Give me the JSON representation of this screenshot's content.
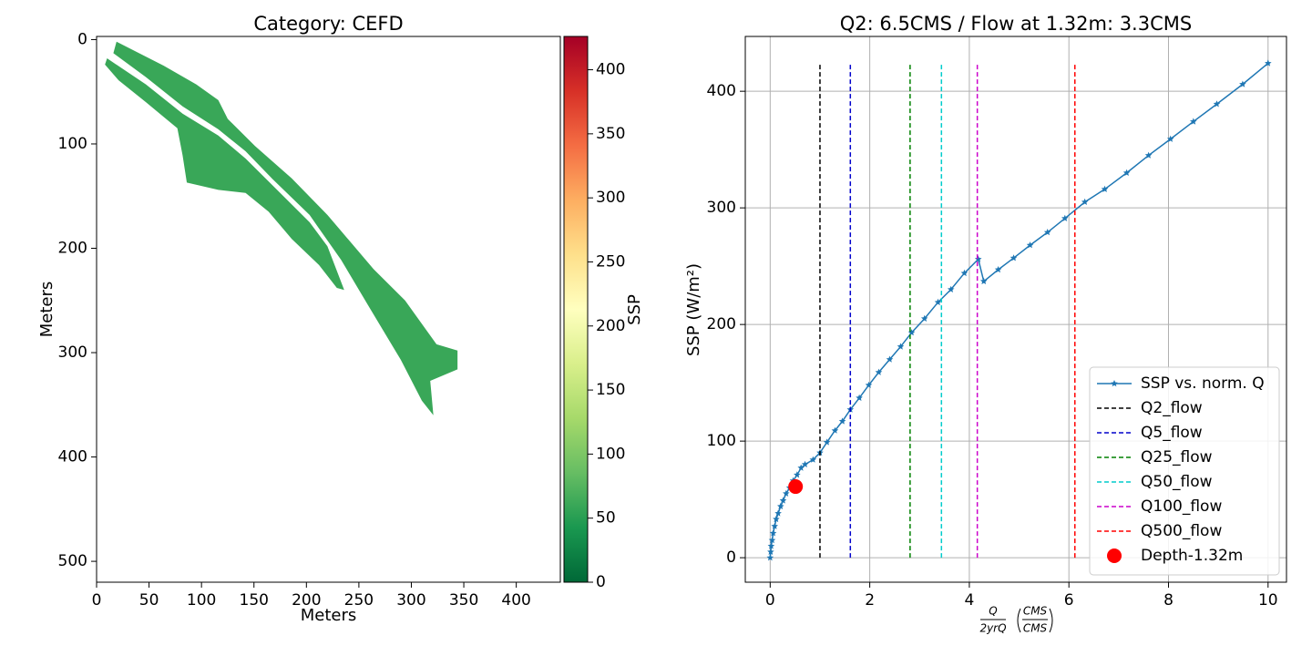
{
  "chart_data": [
    {
      "type": "map",
      "title": "Category: CEFD",
      "xlabel": "Meters",
      "ylabel": "Meters",
      "xlim": [
        0,
        442
      ],
      "ylim": [
        520,
        -3
      ],
      "xticks": [
        0,
        50,
        100,
        150,
        200,
        250,
        300,
        350,
        400
      ],
      "yticks": [
        0,
        100,
        200,
        300,
        400,
        500
      ],
      "regions": [
        {
          "value": 60,
          "points": [
            [
              19,
              2
            ],
            [
              64,
              25
            ],
            [
              95,
              43
            ],
            [
              116,
              58
            ],
            [
              125,
              76
            ],
            [
              151,
              102
            ],
            [
              186,
              133
            ],
            [
              220,
              168
            ],
            [
              264,
              220
            ],
            [
              294,
              250
            ],
            [
              324,
              292
            ],
            [
              344,
              298
            ],
            [
              344,
              316
            ],
            [
              318,
              327
            ],
            [
              321,
              360
            ],
            [
              310,
              346
            ],
            [
              290,
              307
            ],
            [
              259,
              255
            ],
            [
              233,
              211
            ],
            [
              212,
              181
            ],
            [
              203,
              168
            ],
            [
              168,
              134
            ],
            [
              142,
              107
            ],
            [
              116,
              86
            ],
            [
              82,
              64
            ],
            [
              47,
              36
            ],
            [
              16,
              13
            ]
          ]
        },
        {
          "value": 60,
          "points": [
            [
              10,
              18
            ],
            [
              47,
              43
            ],
            [
              82,
              71
            ],
            [
              116,
              92
            ],
            [
              142,
              114
            ],
            [
              168,
              140
            ],
            [
              203,
              175
            ],
            [
              220,
              198
            ],
            [
              236,
              240
            ],
            [
              229,
              238
            ],
            [
              212,
              216
            ],
            [
              186,
              191
            ],
            [
              164,
              165
            ],
            [
              142,
              147
            ],
            [
              116,
              144
            ],
            [
              86,
              137
            ],
            [
              82,
              111
            ],
            [
              77,
              85
            ],
            [
              47,
              60
            ],
            [
              21,
              39
            ],
            [
              8,
              24
            ]
          ]
        }
      ],
      "colorbar": {
        "label": "SSP",
        "lim": [
          0,
          426
        ],
        "ticks": [
          0,
          50,
          100,
          150,
          200,
          250,
          300,
          350,
          400
        ],
        "colormap": [
          "#006837",
          "#1a9850",
          "#66bd63",
          "#a6d96a",
          "#d9ef8b",
          "#ffffbf",
          "#fee08b",
          "#fdae61",
          "#f46d43",
          "#d73027",
          "#a50026"
        ]
      }
    },
    {
      "type": "line",
      "title": "Q2: 6.5CMS / Flow at 1.32m: 3.3CMS",
      "ylabel": "SSP (W/m²)",
      "xlabel": {
        "numerator": "Q",
        "denominator": "2yrQ",
        "unit_numerator": "CMS",
        "unit_denominator": "CMS"
      },
      "xlim": [
        -0.5,
        10.37
      ],
      "ylim": [
        -21,
        447
      ],
      "xticks": [
        0,
        2,
        4,
        6,
        8,
        10
      ],
      "yticks": [
        0,
        100,
        200,
        300,
        400
      ],
      "grid": true,
      "legend": "lower right",
      "series": [
        {
          "name": "SSP vs. norm. Q",
          "color": "#1f77b4",
          "style": "solid",
          "marker": "star",
          "x": [
            0,
            0.01,
            0.02,
            0.04,
            0.06,
            0.09,
            0.12,
            0.16,
            0.21,
            0.26,
            0.32,
            0.39,
            0.46,
            0.54,
            0.62,
            0.7,
            0.86,
            1.0,
            1.14,
            1.3,
            1.45,
            1.61,
            1.79,
            1.98,
            2.18,
            2.4,
            2.62,
            2.84,
            3.1,
            3.37,
            3.63,
            3.9,
            4.18,
            4.29,
            4.58,
            4.89,
            5.22,
            5.57,
            5.92,
            6.32,
            6.72,
            7.16,
            7.6,
            8.04,
            8.5,
            8.97,
            9.49,
            10
          ],
          "values": [
            0,
            5,
            10,
            15,
            21,
            27,
            33,
            38,
            44,
            49,
            55,
            60,
            66,
            71,
            77,
            80,
            84,
            90,
            99,
            109,
            117,
            127,
            137,
            148,
            159,
            170,
            181,
            193,
            205,
            219,
            230,
            244,
            256,
            237,
            247,
            257,
            268,
            279,
            291,
            305,
            316,
            330,
            345,
            359,
            374,
            389,
            406,
            424
          ]
        },
        {
          "name": "Q2_flow",
          "color": "#000000",
          "style": "dashed",
          "marker": "none",
          "x": [
            1.0,
            1.0
          ],
          "values": [
            0,
            424
          ]
        },
        {
          "name": "Q5_flow",
          "color": "#0000cc",
          "style": "dashed",
          "marker": "none",
          "x": [
            1.61,
            1.61
          ],
          "values": [
            0,
            424
          ]
        },
        {
          "name": "Q25_flow",
          "color": "#008000",
          "style": "dashed",
          "marker": "none",
          "x": [
            2.81,
            2.81
          ],
          "values": [
            0,
            424
          ]
        },
        {
          "name": "Q50_flow",
          "color": "#00cccc",
          "style": "dashed",
          "marker": "none",
          "x": [
            3.44,
            3.44
          ],
          "values": [
            0,
            424
          ]
        },
        {
          "name": "Q100_flow",
          "color": "#cc00cc",
          "style": "dashed",
          "marker": "none",
          "x": [
            4.16,
            4.16
          ],
          "values": [
            0,
            424
          ]
        },
        {
          "name": "Q500_flow",
          "color": "#ff0000",
          "style": "dashed",
          "marker": "none",
          "x": [
            6.12,
            6.12
          ],
          "values": [
            0,
            424
          ]
        },
        {
          "name": "Depth-1.32m",
          "color": "#ff0000",
          "style": "none",
          "marker": "circle",
          "x": [
            0.51
          ],
          "values": [
            61
          ]
        }
      ]
    }
  ]
}
